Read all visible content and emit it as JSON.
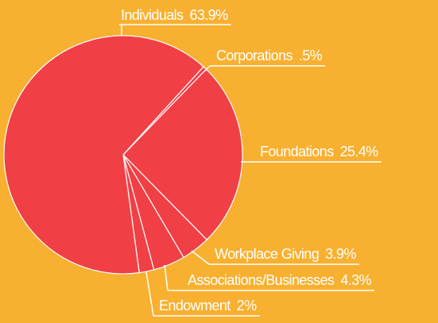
{
  "chart_data": {
    "type": "pie",
    "categories": [
      "Individuals",
      "Corporations",
      "Foundations",
      "Workplace Giving",
      "Associations/Businesses",
      "Endowment"
    ],
    "values": [
      63.9,
      0.5,
      25.4,
      3.9,
      4.3,
      2
    ],
    "value_labels": [
      "63.9%",
      ".5%",
      "25.4%",
      "3.9%",
      "4.3%",
      "2%"
    ],
    "color": "#f04045"
  }
}
